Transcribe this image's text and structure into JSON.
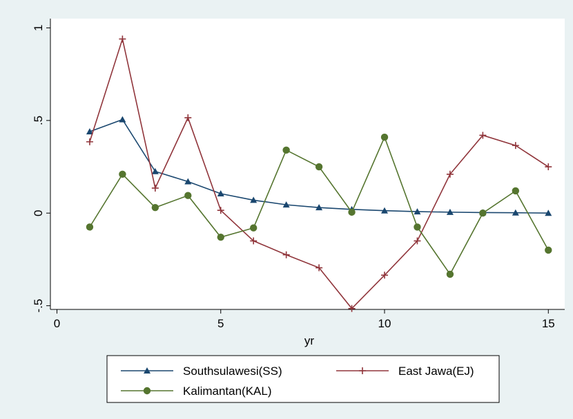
{
  "chart_data": {
    "type": "line",
    "xlabel": "yr",
    "ylabel": "",
    "xlim": [
      -0.2,
      15.5
    ],
    "ylim": [
      -0.52,
      1.05
    ],
    "xticks": [
      0,
      5,
      10,
      15
    ],
    "xtick_labels": [
      "0",
      "5",
      "10",
      "15"
    ],
    "yticks": [
      -0.5,
      0,
      0.5,
      1
    ],
    "ytick_labels": [
      "-.5",
      "0",
      ".5",
      "1"
    ],
    "grid": false,
    "legend_position": "bottom",
    "x": [
      1,
      2,
      3,
      4,
      5,
      6,
      7,
      8,
      9,
      10,
      11,
      12,
      13,
      14,
      15
    ],
    "series": [
      {
        "name": "Southsulawesi(SS)",
        "color": "#1a476f",
        "marker": "triangle",
        "values": [
          0.44,
          0.505,
          0.225,
          0.17,
          0.105,
          0.07,
          0.045,
          0.03,
          0.02,
          0.013,
          0.008,
          0.005,
          0.003,
          0.002,
          0.0
        ]
      },
      {
        "name": "East Jawa(EJ)",
        "color": "#90353b",
        "marker": "plus",
        "values": [
          0.385,
          0.94,
          0.135,
          0.515,
          0.015,
          -0.15,
          -0.225,
          -0.295,
          -0.515,
          -0.335,
          -0.15,
          0.21,
          0.42,
          0.365,
          0.25
        ]
      },
      {
        "name": "Kalimantan(KAL)",
        "color": "#55752f",
        "marker": "circle",
        "values": [
          -0.075,
          0.21,
          0.03,
          0.095,
          -0.13,
          -0.08,
          0.34,
          0.25,
          0.005,
          0.41,
          -0.075,
          -0.33,
          0.0,
          0.12,
          -0.2
        ]
      }
    ]
  }
}
